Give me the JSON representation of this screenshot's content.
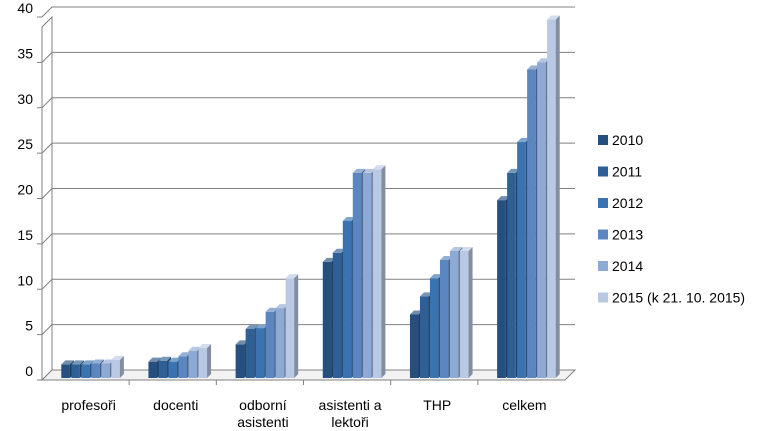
{
  "chart_data": {
    "type": "bar",
    "categories": [
      [
        "profesoři"
      ],
      [
        "docenti"
      ],
      [
        "odborní",
        "asistenti"
      ],
      [
        "asistenti a",
        "lektoři"
      ],
      [
        "THP"
      ],
      [
        "celkem"
      ]
    ],
    "series": [
      {
        "name": "2010",
        "color": "#254f7e",
        "values": [
          1.5,
          1.8,
          3.7,
          12.8,
          7.0,
          19.6
        ]
      },
      {
        "name": "2011",
        "color": "#2e5f95",
        "values": [
          1.5,
          1.9,
          5.4,
          13.8,
          9.0,
          22.6
        ]
      },
      {
        "name": "2012",
        "color": "#3a73b0",
        "values": [
          1.5,
          1.8,
          5.5,
          17.3,
          11.0,
          26.0
        ]
      },
      {
        "name": "2013",
        "color": "#5b86bf",
        "values": [
          1.6,
          2.4,
          7.3,
          22.6,
          13.0,
          34.0
        ]
      },
      {
        "name": "2014",
        "color": "#8ea9d3",
        "values": [
          1.6,
          3.0,
          7.7,
          22.6,
          14.0,
          34.8
        ]
      },
      {
        "name": "2015 (k 21. 10. 2015)",
        "color": "#b9c9e4",
        "values": [
          2.0,
          3.3,
          11.0,
          23.0,
          14.0,
          39.5
        ]
      }
    ],
    "ylim": [
      0,
      40
    ],
    "yticks": [
      "0",
      "5",
      "10",
      "15",
      "20",
      "25",
      "30",
      "35",
      "40"
    ],
    "grid": true,
    "legend_position": "right"
  }
}
